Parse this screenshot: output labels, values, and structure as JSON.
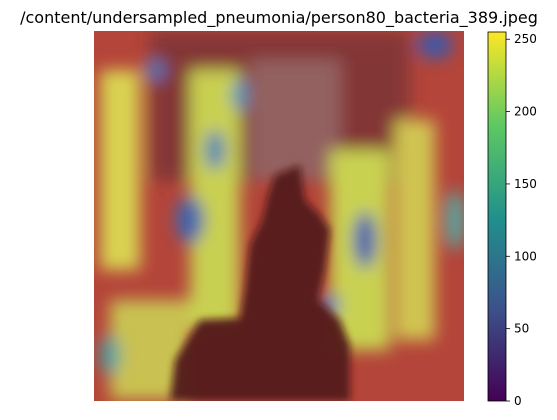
{
  "figure": {
    "title": "/content/undersampled_pneumonia/person80_bacteria_389.jpeg"
  },
  "image": {
    "description_icon": "chest-xray-heatmap-overlay"
  },
  "colorbar": {
    "colormap": "viridis",
    "min": 0,
    "max": 255,
    "ticks": [
      {
        "value": 0,
        "label": "0"
      },
      {
        "value": 50,
        "label": "50"
      },
      {
        "value": 100,
        "label": "100"
      },
      {
        "value": 150,
        "label": "150"
      },
      {
        "value": 200,
        "label": "200"
      },
      {
        "value": 250,
        "label": "250"
      }
    ],
    "colors": [
      "#440154",
      "#3b528b",
      "#21918c",
      "#5ec962",
      "#fde725"
    ]
  }
}
